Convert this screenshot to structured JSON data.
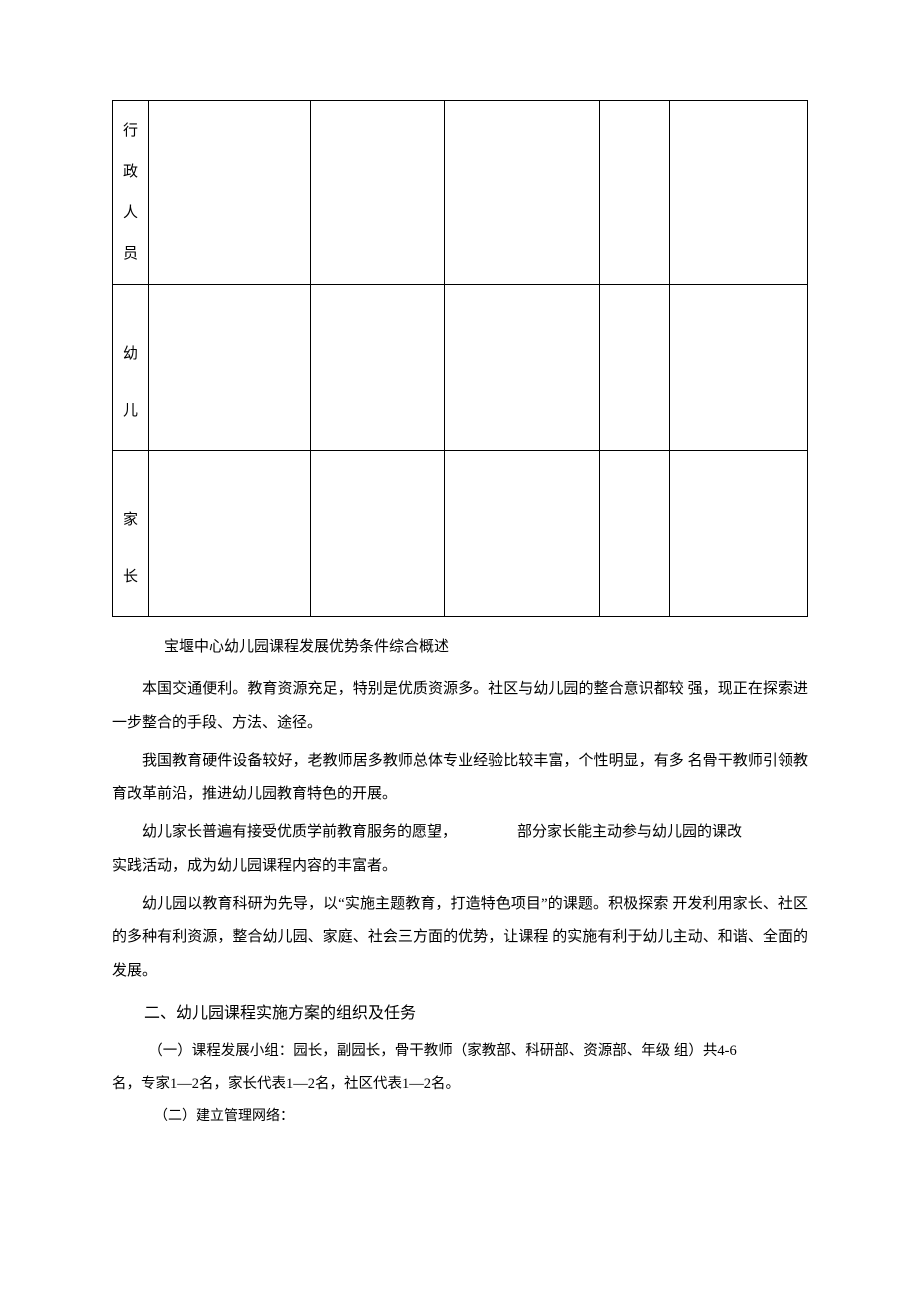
{
  "table": {
    "rows": [
      {
        "label_chars": [
          "行",
          "政",
          "人",
          "员"
        ]
      },
      {
        "label_chars": [
          "幼",
          "儿"
        ]
      },
      {
        "label_chars": [
          "家",
          "长"
        ]
      }
    ]
  },
  "heading1": "宝堰中心幼儿园课程发展优势条件综合概述",
  "p1": "本国交通便利。教育资源充足，特别是优质资源多。社区与幼儿园的整合意识都较 强，现正在探索进一步整合的手段、方法、途径。",
  "p2": "我国教育硬件设备较好，老教师居多教师总体专业经验比较丰富，个性明显，有多 名骨干教师引领教育改革前沿，推进幼儿园教育特色的开展。",
  "p3a": "幼儿家长普遍有接受优质学前教育服务的愿望，",
  "p3b": "部分家长能主动参与幼儿园的课改",
  "p3c": "实践活动，成为幼儿园课程内容的丰富者。",
  "p4": "幼儿园以教育科研为先导，以“实施主题教育，打造特色项目”的课题。积极探索 开发利用家长、社区的多种有利资源，整合幼儿园、家庭、社会三方面的优势，让课程  的实施有利于幼儿主动、和谐、全面的发展。",
  "section2": "二、幼儿园课程实施方案的组织及任务",
  "s2p1": "（一）课程发展小组：园长，副园长，骨干教师（家教部、科研部、资源部、年级 组）共4-6",
  "s2p1b": "名，专家1—2名，家长代表1—2名，社区代表1—2名。",
  "s2p2": "（二）建立管理网络："
}
